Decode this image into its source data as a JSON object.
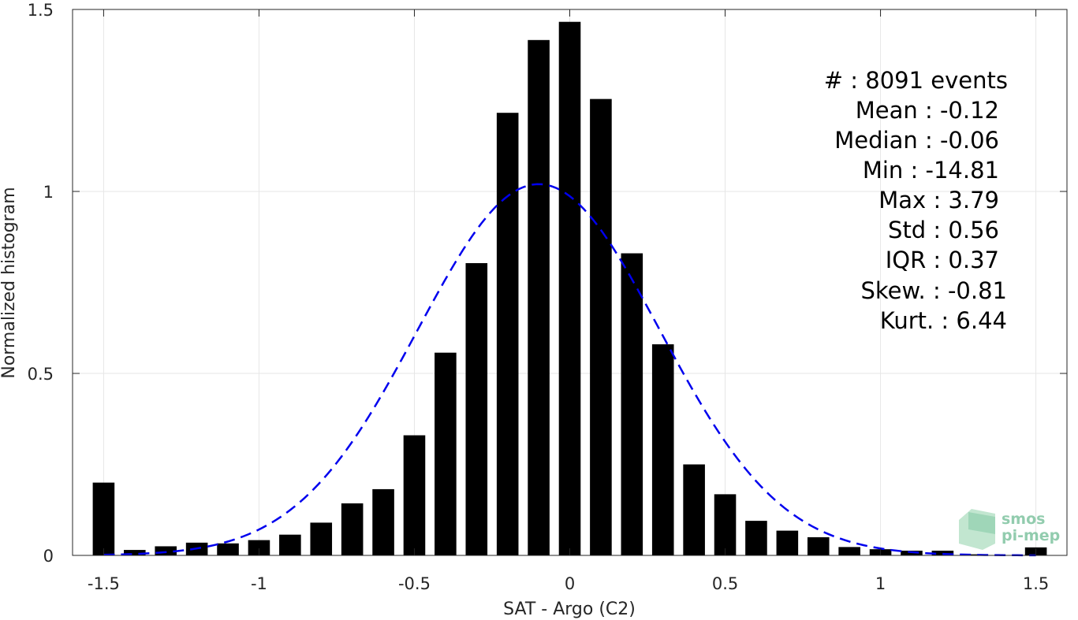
{
  "chart_data": {
    "type": "bar",
    "title": "",
    "xlabel": "SAT - Argo (C2)",
    "ylabel": "Normalized histogram",
    "xlim": [
      -1.6,
      1.6
    ],
    "ylim": [
      0,
      1.5
    ],
    "xticks": [
      -1.5,
      -1,
      -0.5,
      0,
      0.5,
      1,
      1.5
    ],
    "xtick_labels": [
      "-1.5",
      "-1",
      "-0.5",
      "0",
      "0.5",
      "1",
      "1.5"
    ],
    "yticks": [
      0,
      0.5,
      1,
      1.5
    ],
    "ytick_labels": [
      "0",
      "0.5",
      "1",
      "1.5"
    ],
    "grid": true,
    "bar_color": "#000000",
    "bin_width": 0.1,
    "bars": [
      {
        "x": -1.5,
        "y": 0.2
      },
      {
        "x": -1.4,
        "y": 0.015
      },
      {
        "x": -1.3,
        "y": 0.025
      },
      {
        "x": -1.2,
        "y": 0.035
      },
      {
        "x": -1.1,
        "y": 0.033
      },
      {
        "x": -1.0,
        "y": 0.042
      },
      {
        "x": -0.9,
        "y": 0.057
      },
      {
        "x": -0.8,
        "y": 0.09
      },
      {
        "x": -0.7,
        "y": 0.143
      },
      {
        "x": -0.6,
        "y": 0.182
      },
      {
        "x": -0.5,
        "y": 0.33
      },
      {
        "x": -0.4,
        "y": 0.557
      },
      {
        "x": -0.3,
        "y": 0.803
      },
      {
        "x": -0.2,
        "y": 1.216
      },
      {
        "x": -0.1,
        "y": 1.416
      },
      {
        "x": 0.0,
        "y": 1.466
      },
      {
        "x": 0.1,
        "y": 1.254
      },
      {
        "x": 0.2,
        "y": 0.83
      },
      {
        "x": 0.3,
        "y": 0.58
      },
      {
        "x": 0.4,
        "y": 0.25
      },
      {
        "x": 0.5,
        "y": 0.168
      },
      {
        "x": 0.6,
        "y": 0.095
      },
      {
        "x": 0.7,
        "y": 0.068
      },
      {
        "x": 0.8,
        "y": 0.05
      },
      {
        "x": 0.9,
        "y": 0.023
      },
      {
        "x": 1.0,
        "y": 0.017
      },
      {
        "x": 1.1,
        "y": 0.013
      },
      {
        "x": 1.2,
        "y": 0.013
      },
      {
        "x": 1.3,
        "y": 0.003
      },
      {
        "x": 1.4,
        "y": 0.0
      },
      {
        "x": 1.5,
        "y": 0.022
      }
    ],
    "fit_curve": {
      "style": "dashed",
      "color": "#0000ee",
      "mean": -0.1,
      "std": 0.39,
      "peak": 1.02,
      "x_range": [
        -1.5,
        1.5
      ]
    }
  },
  "stats": [
    {
      "label": "#  : 8091 events"
    },
    {
      "label": "Mean : -0.12"
    },
    {
      "label": "Median : -0.06"
    },
    {
      "label": "Min : -14.81"
    },
    {
      "label": "Max : 3.79"
    },
    {
      "label": "Std : 0.56"
    },
    {
      "label": "IQR : 0.37"
    },
    {
      "label": "Skew. : -0.81"
    },
    {
      "label": "Kurt. : 6.44"
    }
  ],
  "logo": {
    "line1": "smos",
    "line2": "pi-mep"
  }
}
